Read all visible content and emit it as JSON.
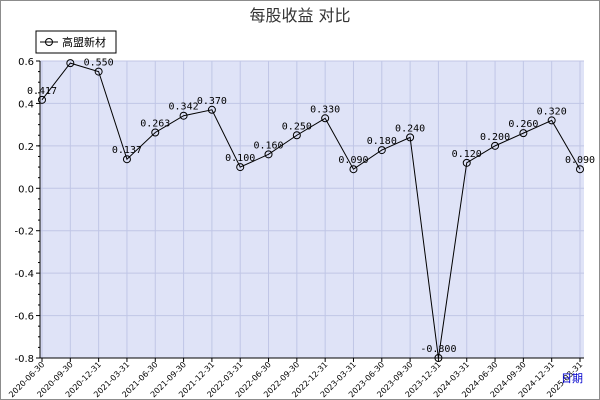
{
  "chart_data": {
    "type": "line",
    "title": "每股收益  对比",
    "xlabel": "日期",
    "ylabel": "",
    "ylim": [
      -0.8,
      0.6
    ],
    "yticks": [
      0.6,
      0.4,
      0.2,
      0.0,
      -0.2,
      -0.4,
      -0.6,
      -0.8
    ],
    "ytick_labels": [
      "0.6",
      "0.4",
      "0.2",
      "0.0",
      "-0.2",
      "-0.4",
      "-0.6",
      "-0.8"
    ],
    "grid": true,
    "legend_position": "top-left",
    "categories": [
      "2020-06-30",
      "2020-09-30",
      "2020-12-31",
      "2021-03-31",
      "2021-06-30",
      "2021-09-30",
      "2021-12-31",
      "2022-03-31",
      "2022-06-30",
      "2022-09-30",
      "2022-12-31",
      "2023-03-31",
      "2023-06-30",
      "2023-09-30",
      "2023-12-31",
      "2024-03-31",
      "2024-06-30",
      "2024-09-30",
      "2024-12-31",
      "2025-03-31"
    ],
    "series": [
      {
        "name": "高盟新材",
        "values": [
          0.417,
          0.59,
          0.55,
          0.137,
          0.263,
          0.342,
          0.37,
          0.1,
          0.16,
          0.25,
          0.33,
          0.09,
          0.18,
          0.24,
          -0.8,
          0.12,
          0.2,
          0.26,
          0.32,
          0.09
        ],
        "labels": [
          "0.417",
          "",
          "0.550",
          "0.137",
          "0.263",
          "0.342",
          "0.370",
          "0.100",
          "0.160",
          "0.250",
          "0.330",
          "0.090",
          "0.180",
          "0.240",
          "-0.800",
          "0.120",
          "0.200",
          "0.260",
          "0.320",
          "0.090"
        ]
      }
    ]
  },
  "colors": {
    "plot_bg": "#dfe3f7",
    "grid": "#c0c6e6",
    "line": "#000000",
    "frame": "#8c8c8c"
  }
}
